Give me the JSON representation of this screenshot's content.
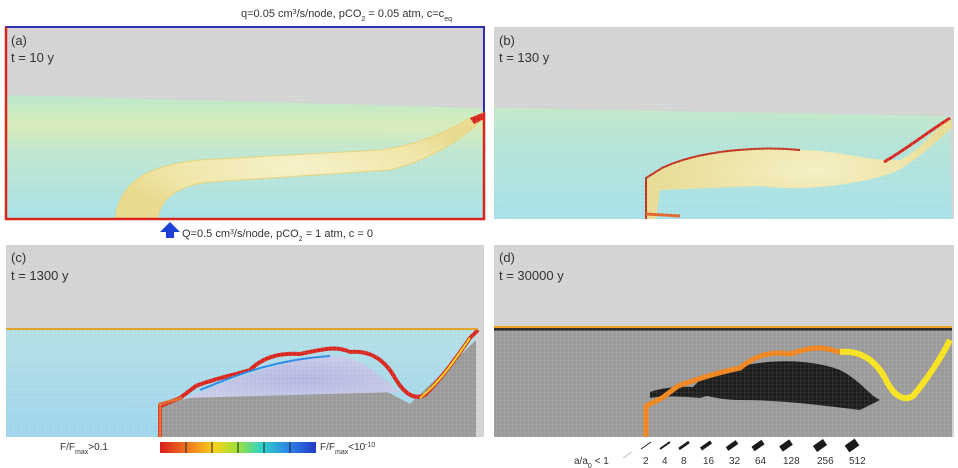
{
  "top_boundary": {
    "prefix": "q=0.05 cm",
    "sup1": "3",
    "mid": "/s/node, pCO",
    "sub1": "2",
    "rest": " = 0.05 atm, c=c",
    "sub2": "eq"
  },
  "bottom_boundary": {
    "prefix": "Q=0.5 cm",
    "sup1": "3",
    "mid": "/s/node, pCO",
    "sub1": "2",
    "rest": " = 1 atm, c = 0"
  },
  "panels": [
    {
      "letter": "(a)",
      "time": "t = 10 y"
    },
    {
      "letter": "(b)",
      "time": "t = 130 y"
    },
    {
      "letter": "(c)",
      "time": "t = 1300 y"
    },
    {
      "letter": "(d)",
      "time": "t = 30000 y"
    }
  ],
  "colorbar": {
    "left_main": "F/F",
    "left_sub": "max",
    "left_rest": ">0.1",
    "right_main": "F/F",
    "right_sub": "max",
    "right_rest": "<10",
    "right_sup": "-10",
    "colors": [
      "#d81e1e",
      "#f07a1e",
      "#f7d21e",
      "#9be03c",
      "#2fd3c8",
      "#2b86e6",
      "#2438c8"
    ]
  },
  "aperture_legend": {
    "prefix_main": "a/a",
    "prefix_sub": "0",
    "prefix_rest": " < 1",
    "values": [
      "2",
      "4",
      "8",
      "16",
      "32",
      "64",
      "128",
      "256",
      "512"
    ]
  },
  "colors": {
    "frame_top": "#2d2fb0",
    "frame_sides": "#d8261e",
    "inlet_arrow": "#1f3fd6",
    "background_rock": "#d2d2d2",
    "aquifer": "#a7e2e6"
  }
}
